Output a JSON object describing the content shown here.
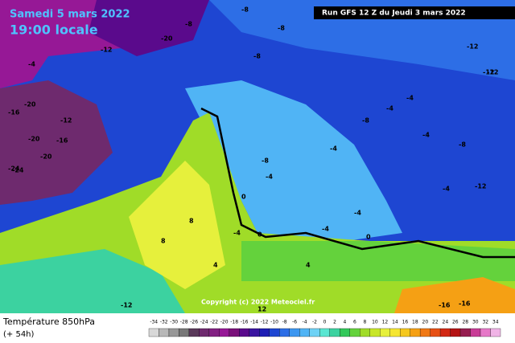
{
  "header": {
    "date": "Samedi 5 mars 2022",
    "time": "19:00 locale",
    "run": "Run GFS 12 Z du Jeudi 3 mars 2022"
  },
  "copyright": "Copyright (c) 2022 Meteociel.fr",
  "footer": {
    "title": "Température 850hPa",
    "lead": "(+ 54h)"
  },
  "legend": {
    "ticks": [
      -34,
      -32,
      -30,
      -28,
      -26,
      -24,
      -22,
      -20,
      -18,
      -16,
      -14,
      -12,
      -10,
      -8,
      -6,
      -4,
      -2,
      0,
      2,
      4,
      6,
      8,
      10,
      12,
      14,
      16,
      18,
      20,
      22,
      24,
      26,
      28,
      30,
      32,
      34
    ],
    "colors": [
      "#d8d8d8",
      "#b8b8b8",
      "#989898",
      "#787878",
      "#5a3a5a",
      "#6e2a6e",
      "#822082",
      "#961896",
      "#7a107a",
      "#5a0a8c",
      "#3a14a0",
      "#1e1eb4",
      "#1e46d2",
      "#2d6ee6",
      "#3c96f0",
      "#50b4f5",
      "#6ed2f5",
      "#5ae6d2",
      "#3cd2a0",
      "#32c85a",
      "#64d23c",
      "#a0dc28",
      "#c8e628",
      "#e6f03c",
      "#f5e632",
      "#f5c81e",
      "#f5a014",
      "#f07814",
      "#e65014",
      "#d22814",
      "#b41414",
      "#961e50",
      "#c83c96",
      "#e678c8",
      "#f0b4e6"
    ]
  },
  "map_labels": [
    "-24",
    "-20",
    "-8",
    "-8",
    "-12",
    "-8",
    "-8",
    "-12",
    "-16",
    "-20",
    "-4",
    "-12",
    "-16",
    "-20",
    "-24",
    "-20",
    "-8",
    "-4",
    "-4",
    "-8",
    "-4",
    "-4",
    "-8",
    "-12",
    "-12",
    "-12",
    "-4",
    "-4",
    "0",
    "0",
    "-4",
    "0",
    "8",
    "8",
    "4",
    "4",
    "-12",
    "-16",
    "-16",
    "-4",
    "-4",
    "12"
  ]
}
